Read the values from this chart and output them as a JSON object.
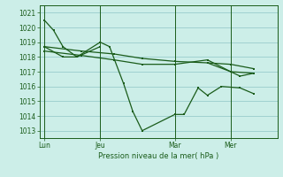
{
  "background_color": "#cceee8",
  "grid_color": "#99cccc",
  "line_color": "#1a5c1a",
  "title": "Pression niveau de la mer( hPa )",
  "ylim": [
    1012.5,
    1021.5
  ],
  "yticks": [
    1013,
    1014,
    1015,
    1016,
    1017,
    1018,
    1019,
    1020,
    1021
  ],
  "xtick_labels": [
    "Lun",
    "Jeu",
    "Mar",
    "Mer"
  ],
  "xtick_positions": [
    0,
    24,
    56,
    80
  ],
  "vline_positions": [
    0,
    24,
    56,
    80
  ],
  "xlim": [
    -2,
    100
  ],
  "series1_steep": {
    "x": [
      0,
      4,
      8,
      14,
      24
    ],
    "y": [
      1020.5,
      1019.8,
      1018.7,
      1018.0,
      1018.7
    ]
  },
  "series2_wavy": {
    "x": [
      0,
      8,
      14,
      24,
      28,
      34,
      38,
      42,
      56,
      60,
      66,
      70,
      76,
      84,
      90
    ],
    "y": [
      1018.7,
      1018.0,
      1018.0,
      1019.0,
      1018.7,
      1016.2,
      1014.3,
      1013.0,
      1014.1,
      1014.1,
      1015.9,
      1015.4,
      1016.0,
      1015.9,
      1015.5
    ]
  },
  "series3_top": {
    "x": [
      0,
      16,
      30,
      42,
      56,
      70,
      80,
      90
    ],
    "y": [
      1018.7,
      1018.4,
      1018.2,
      1017.9,
      1017.7,
      1017.6,
      1017.5,
      1017.2
    ]
  },
  "series4_mid": {
    "x": [
      0,
      16,
      30,
      42,
      56,
      70,
      80,
      90
    ],
    "y": [
      1018.4,
      1018.1,
      1017.8,
      1017.5,
      1017.5,
      1017.8,
      1017.0,
      1016.9
    ]
  },
  "series5_end": {
    "x": [
      70,
      80,
      84,
      90
    ],
    "y": [
      1017.6,
      1017.0,
      1016.7,
      1016.9
    ]
  }
}
